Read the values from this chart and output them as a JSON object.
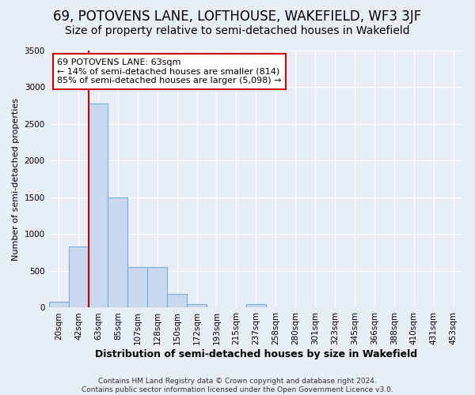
{
  "title": "69, POTOVENS LANE, LOFTHOUSE, WAKEFIELD, WF3 3JF",
  "subtitle": "Size of property relative to semi-detached houses in Wakefield",
  "xlabel": "Distribution of semi-detached houses by size in Wakefield",
  "ylabel": "Number of semi-detached properties",
  "footer_line1": "Contains HM Land Registry data © Crown copyright and database right 2024.",
  "footer_line2": "Contains public sector information licensed under the Open Government Licence v3.0.",
  "categories": [
    "20sqm",
    "42sqm",
    "63sqm",
    "85sqm",
    "107sqm",
    "128sqm",
    "150sqm",
    "172sqm",
    "193sqm",
    "215sqm",
    "237sqm",
    "258sqm",
    "280sqm",
    "301sqm",
    "323sqm",
    "345sqm",
    "366sqm",
    "388sqm",
    "410sqm",
    "431sqm",
    "453sqm"
  ],
  "values": [
    80,
    830,
    2780,
    1500,
    555,
    555,
    190,
    50,
    0,
    0,
    50,
    0,
    0,
    0,
    0,
    0,
    0,
    0,
    0,
    0,
    0
  ],
  "bar_color": "#c8d8ef",
  "bar_edge_color": "#7aadd4",
  "vline_index": 2,
  "vline_color": "#cc0000",
  "annotation_text": "69 POTOVENS LANE: 63sqm\n← 14% of semi-detached houses are smaller (814)\n85% of semi-detached houses are larger (5,098) →",
  "annotation_box_color": "white",
  "annotation_border_color": "#cc0000",
  "ylim": [
    0,
    3500
  ],
  "yticks": [
    0,
    500,
    1000,
    1500,
    2000,
    2500,
    3000,
    3500
  ],
  "title_fontsize": 12,
  "subtitle_fontsize": 10,
  "xlabel_fontsize": 9,
  "ylabel_fontsize": 8,
  "tick_fontsize": 7.5,
  "annotation_fontsize": 8,
  "footer_fontsize": 6.5,
  "background_color": "#e8eef8",
  "plot_bg_color": "#e8eef8",
  "grid_color": "white"
}
